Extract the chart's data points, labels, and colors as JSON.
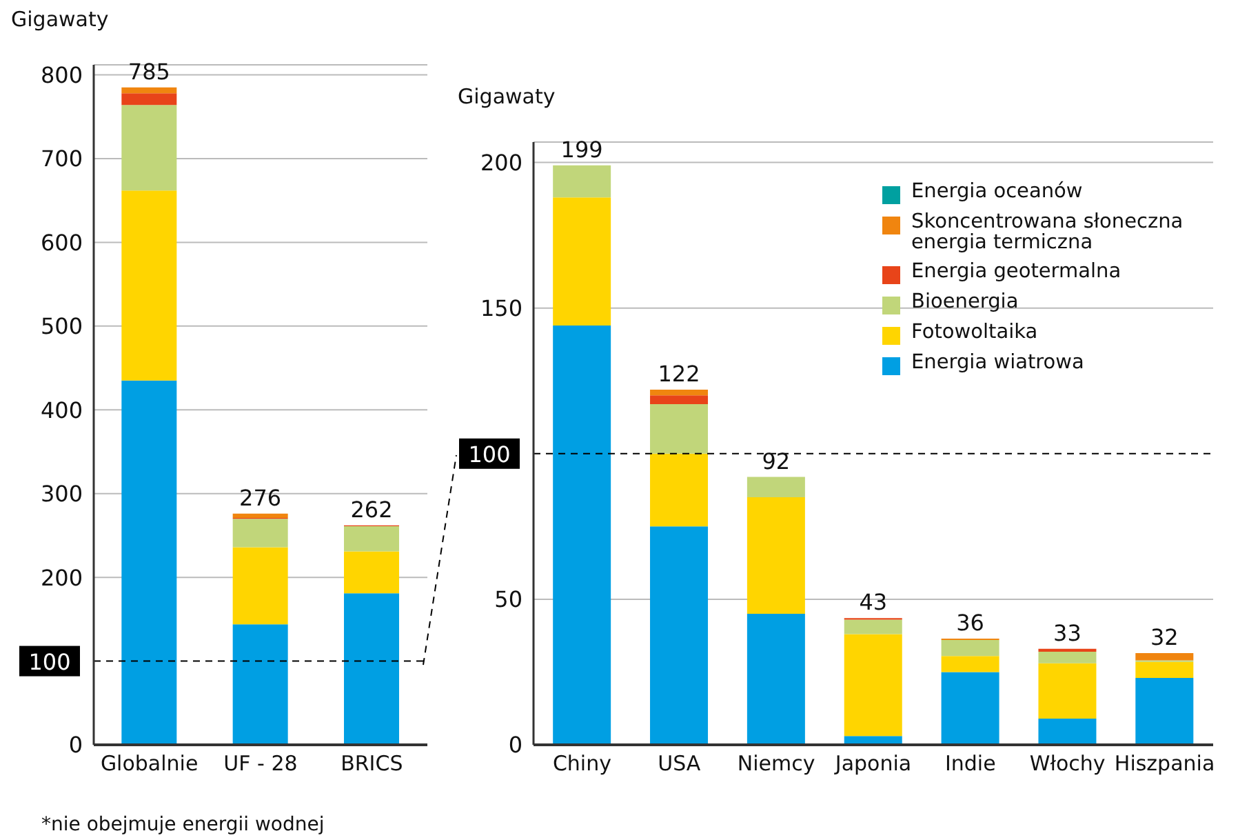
{
  "chart_data": [
    {
      "type": "bar",
      "ylabel": "Gigawaty",
      "categories": [
        "Globalnie",
        "UF - 28",
        "BRICS"
      ],
      "stacked": true,
      "series": [
        {
          "color": "#009fe3",
          "values": [
            435,
            144,
            181
          ]
        },
        {
          "color": "#ffd500",
          "values": [
            227,
            92,
            50
          ]
        },
        {
          "color": "#c1d67a",
          "values": [
            102,
            34,
            30
          ]
        },
        {
          "color": "#e84419",
          "values": [
            14,
            1,
            1
          ]
        },
        {
          "color": "#f0850f",
          "values": [
            7,
            5,
            null
          ]
        },
        {
          "color": "#00a0a0",
          "values": [
            null,
            null,
            null
          ]
        }
      ],
      "totals": [
        "785",
        "276",
        "262"
      ],
      "ylim": [
        0,
        812
      ],
      "yticks": [
        0,
        200,
        300,
        400,
        500,
        600,
        700,
        800
      ],
      "grid": "y",
      "ref_lines": [
        {
          "axis": "y",
          "value": 100,
          "label": "100",
          "line_style": "dashed"
        }
      ],
      "annotations": [
        "*nie obejmuje energii wodnej"
      ]
    },
    {
      "type": "bar",
      "ylabel": "Gigawaty",
      "categories": [
        "Chiny",
        "USA",
        "Niemcy",
        "Japonia",
        "Indie",
        "Włochy",
        "Hiszpania"
      ],
      "stacked": true,
      "series": [
        {
          "name": "Energia wiatrowa",
          "color": "#009fe3",
          "values": [
            144,
            75,
            45,
            3,
            25,
            9,
            23
          ]
        },
        {
          "name": "Fotowoltaika",
          "color": "#ffd500",
          "values": [
            44,
            25,
            40,
            35,
            5.5,
            19,
            5.5
          ]
        },
        {
          "name": "Bioenergia",
          "color": "#c1d67a",
          "values": [
            11,
            17,
            7,
            5,
            5.5,
            4,
            0.5
          ]
        },
        {
          "name": "Energia geotermalna",
          "color": "#e84419",
          "values": [
            null,
            3,
            null,
            0.5,
            null,
            1,
            null
          ]
        },
        {
          "name": "Skoncentrowana słoneczna energia termiczna",
          "color": "#f0850f",
          "values": [
            null,
            2,
            null,
            null,
            0.5,
            null,
            2.5
          ]
        },
        {
          "name": "Energia oceanów",
          "color": "#00a0a0",
          "values": [
            null,
            null,
            null,
            null,
            null,
            null,
            null
          ]
        }
      ],
      "totals": [
        "199",
        "122",
        "92",
        "43",
        "36",
        "33",
        "32"
      ],
      "ylim": [
        0,
        207
      ],
      "yticks": [
        0,
        50,
        150,
        200
      ],
      "grid": "y",
      "legend": "top right",
      "ref_lines": [
        {
          "axis": "y",
          "value": 100,
          "label": "100",
          "line_style": "dashed"
        }
      ]
    }
  ]
}
